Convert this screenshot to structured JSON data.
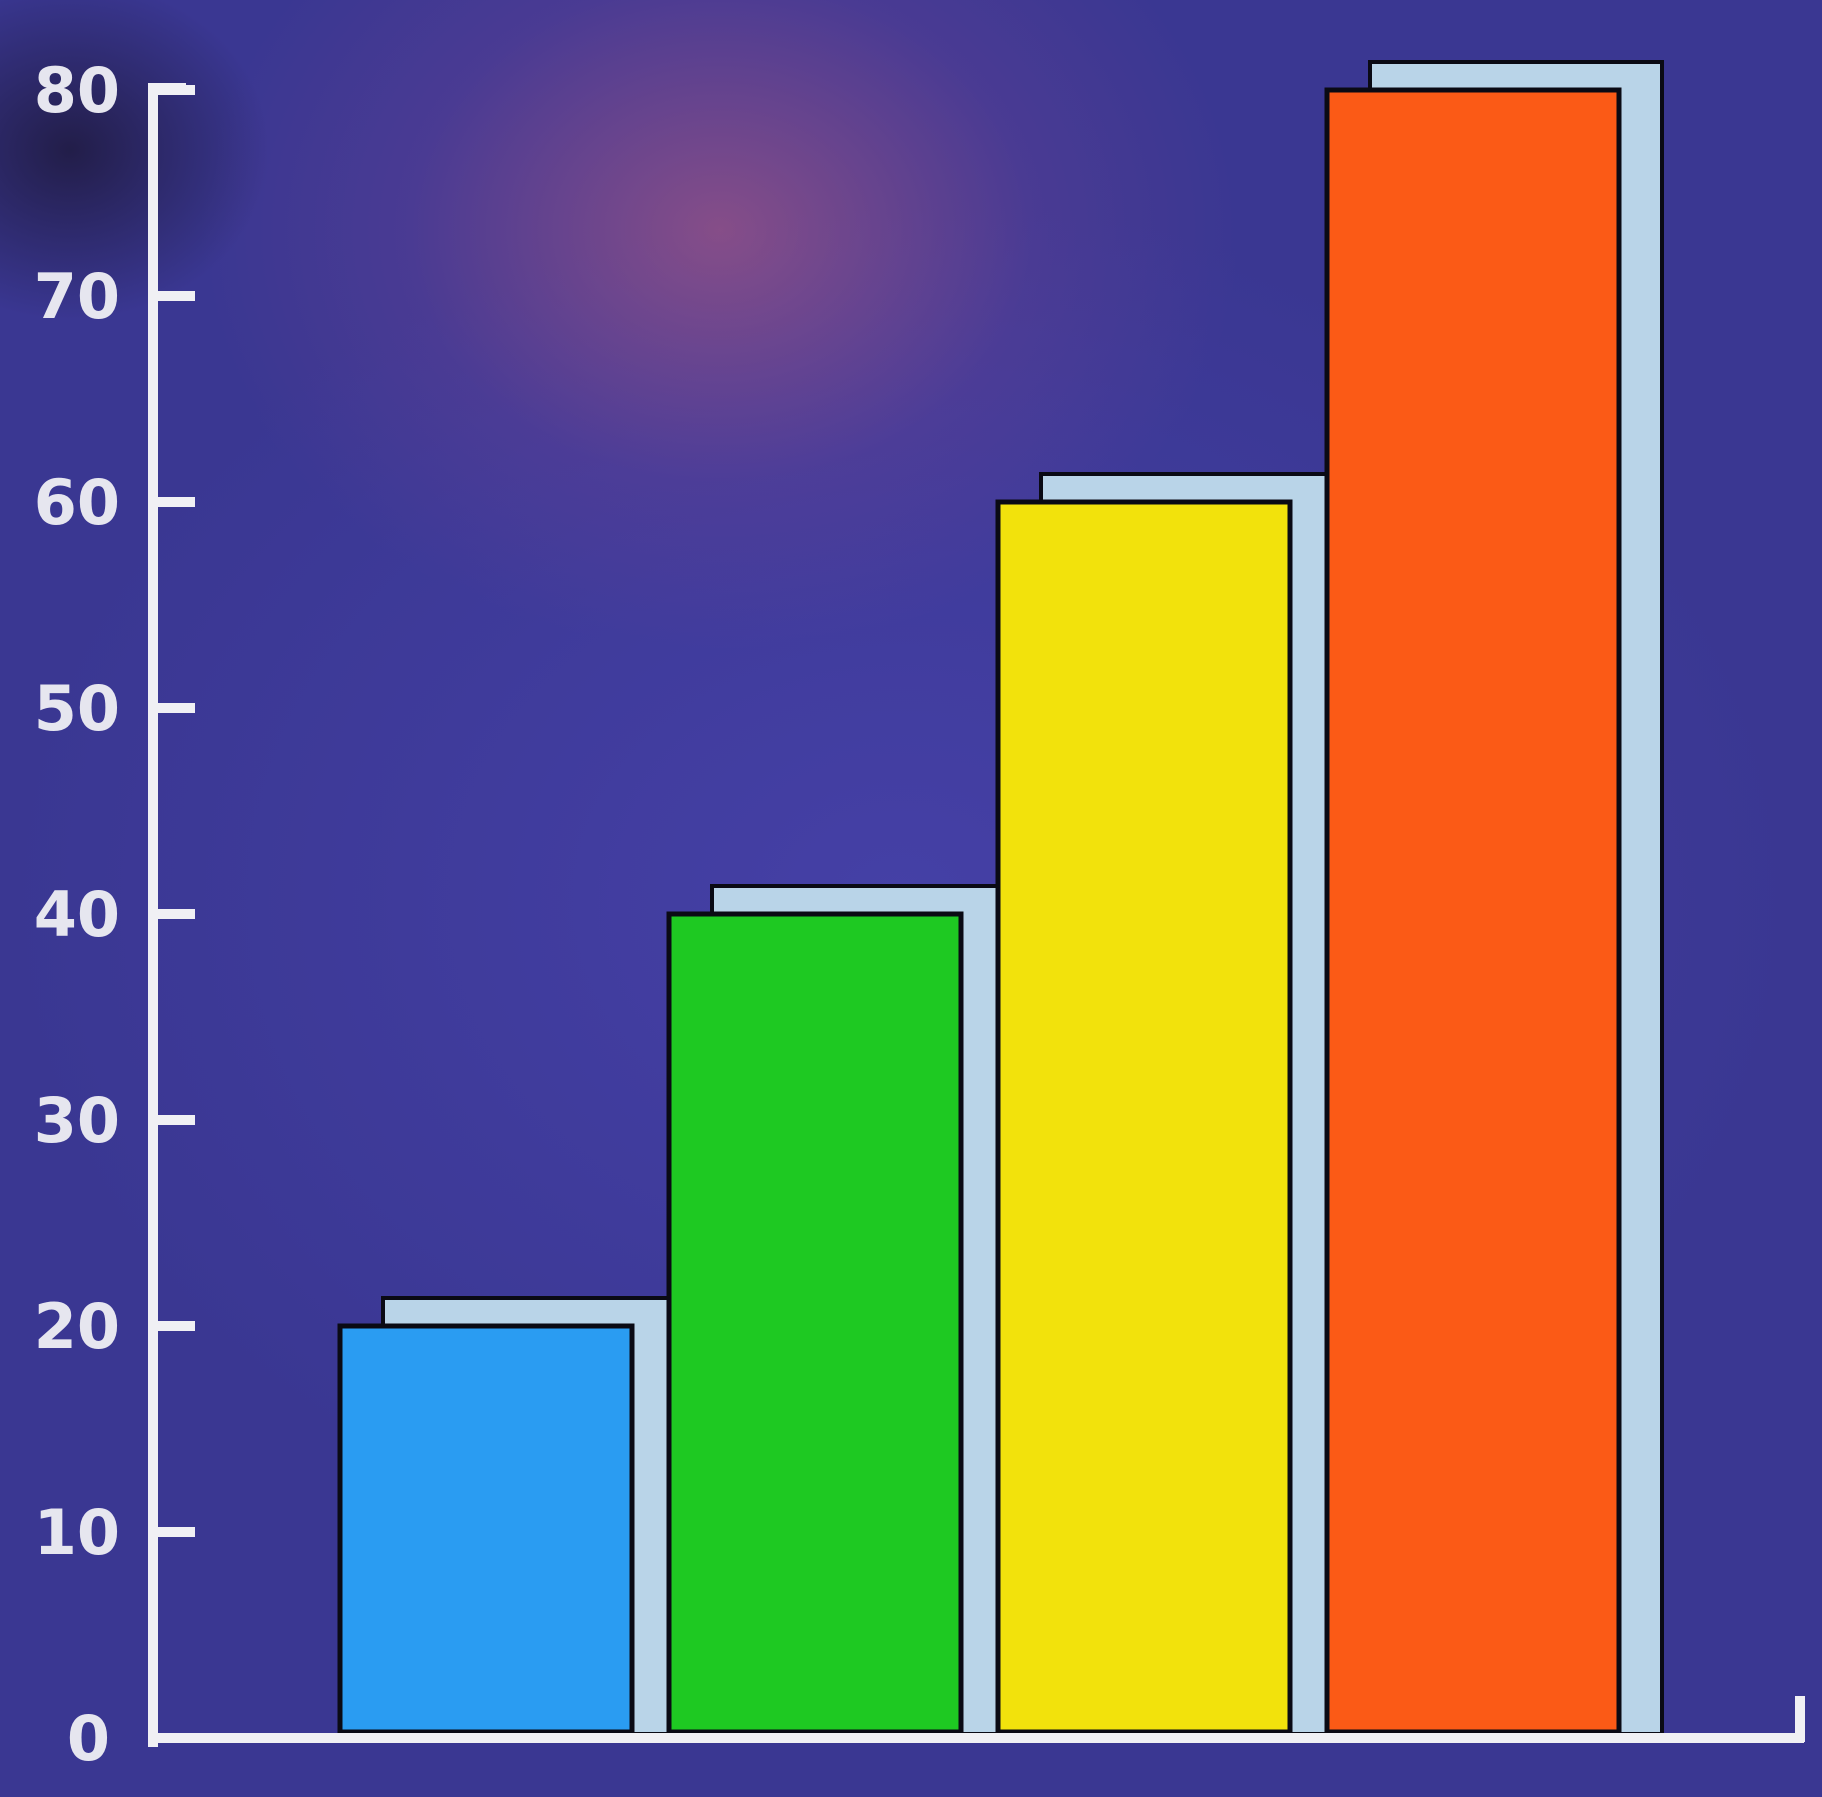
{
  "chart_data": {
    "type": "bar",
    "categories": [
      "",
      "",
      "",
      ""
    ],
    "values": [
      20,
      40,
      60,
      80
    ],
    "colors": [
      "#2a9cf2",
      "#1ec922",
      "#f2e20c",
      "#fb5a16"
    ],
    "shadow_color": "#b9d4e8",
    "axis_color": "#f0f0f4",
    "background_color": "#3f3c9a",
    "title": "",
    "xlabel": "",
    "ylabel": "",
    "ylim": [
      0,
      80
    ],
    "yticks": [
      0,
      10,
      20,
      30,
      40,
      50,
      60,
      70,
      80
    ],
    "ytick_labels": [
      "0",
      "10",
      "20",
      "30",
      "40",
      "50",
      "60",
      "70",
      "80"
    ],
    "grid": false,
    "legend": "none"
  }
}
